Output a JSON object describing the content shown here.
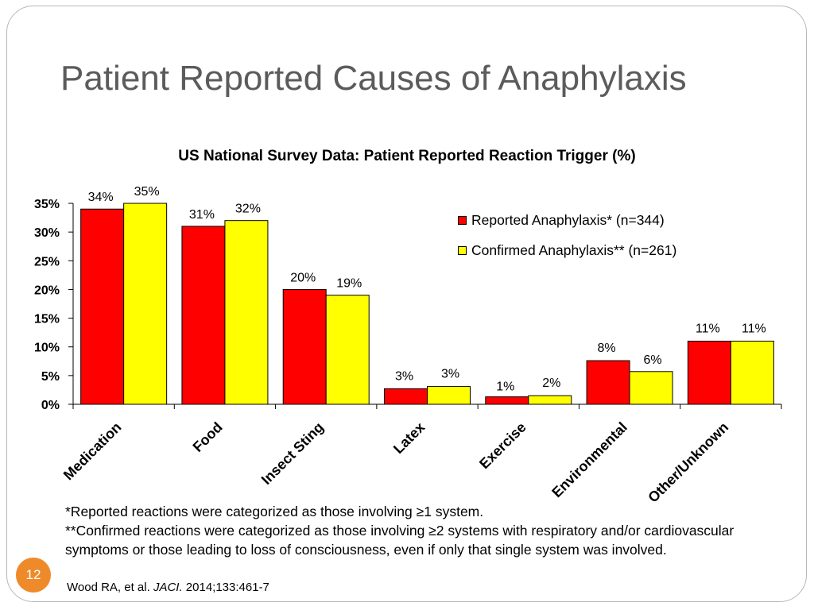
{
  "slide": {
    "title": "Patient Reported Causes of Anaphylaxis",
    "page_number": "12"
  },
  "footnotes": {
    "line1": "*Reported reactions were categorized as those involving ≥1 system.",
    "line2": "**Confirmed reactions were categorized as those involving ≥2 systems with respiratory and/or cardiovascular symptoms or those leading to loss of consciousness, even if only that single system was involved."
  },
  "citation": {
    "authors": "Wood RA, et al. ",
    "journal": "JACI.",
    "details": " 2014;133:461-7"
  },
  "chart_data": {
    "type": "bar",
    "title": "US National Survey Data: Patient Reported Reaction Trigger (%)",
    "categories": [
      "Medication",
      "Food",
      "Insect Sting",
      "Latex",
      "Exercise",
      "Environmental",
      "Other/Unknown"
    ],
    "series": [
      {
        "name": "Reported Anaphylaxis* (n=344)",
        "color": "#ff0000",
        "values": [
          34,
          31,
          20,
          2.7,
          1.3,
          7.6,
          11
        ],
        "labels": [
          "34%",
          "31%",
          "20%",
          "3%",
          "1%",
          "8%",
          "11%"
        ]
      },
      {
        "name": "Confirmed Anaphylaxis** (n=261)",
        "color": "#ffff00",
        "values": [
          35,
          32,
          19,
          3.1,
          1.5,
          5.7,
          11
        ],
        "labels": [
          "35%",
          "32%",
          "19%",
          "3%",
          "2%",
          "6%",
          "11%"
        ]
      }
    ],
    "yticks": [
      "0%",
      "5%",
      "10%",
      "15%",
      "20%",
      "25%",
      "30%",
      "35%"
    ],
    "ylim": [
      0,
      35
    ],
    "grid": false,
    "legend_position": "top-right"
  }
}
